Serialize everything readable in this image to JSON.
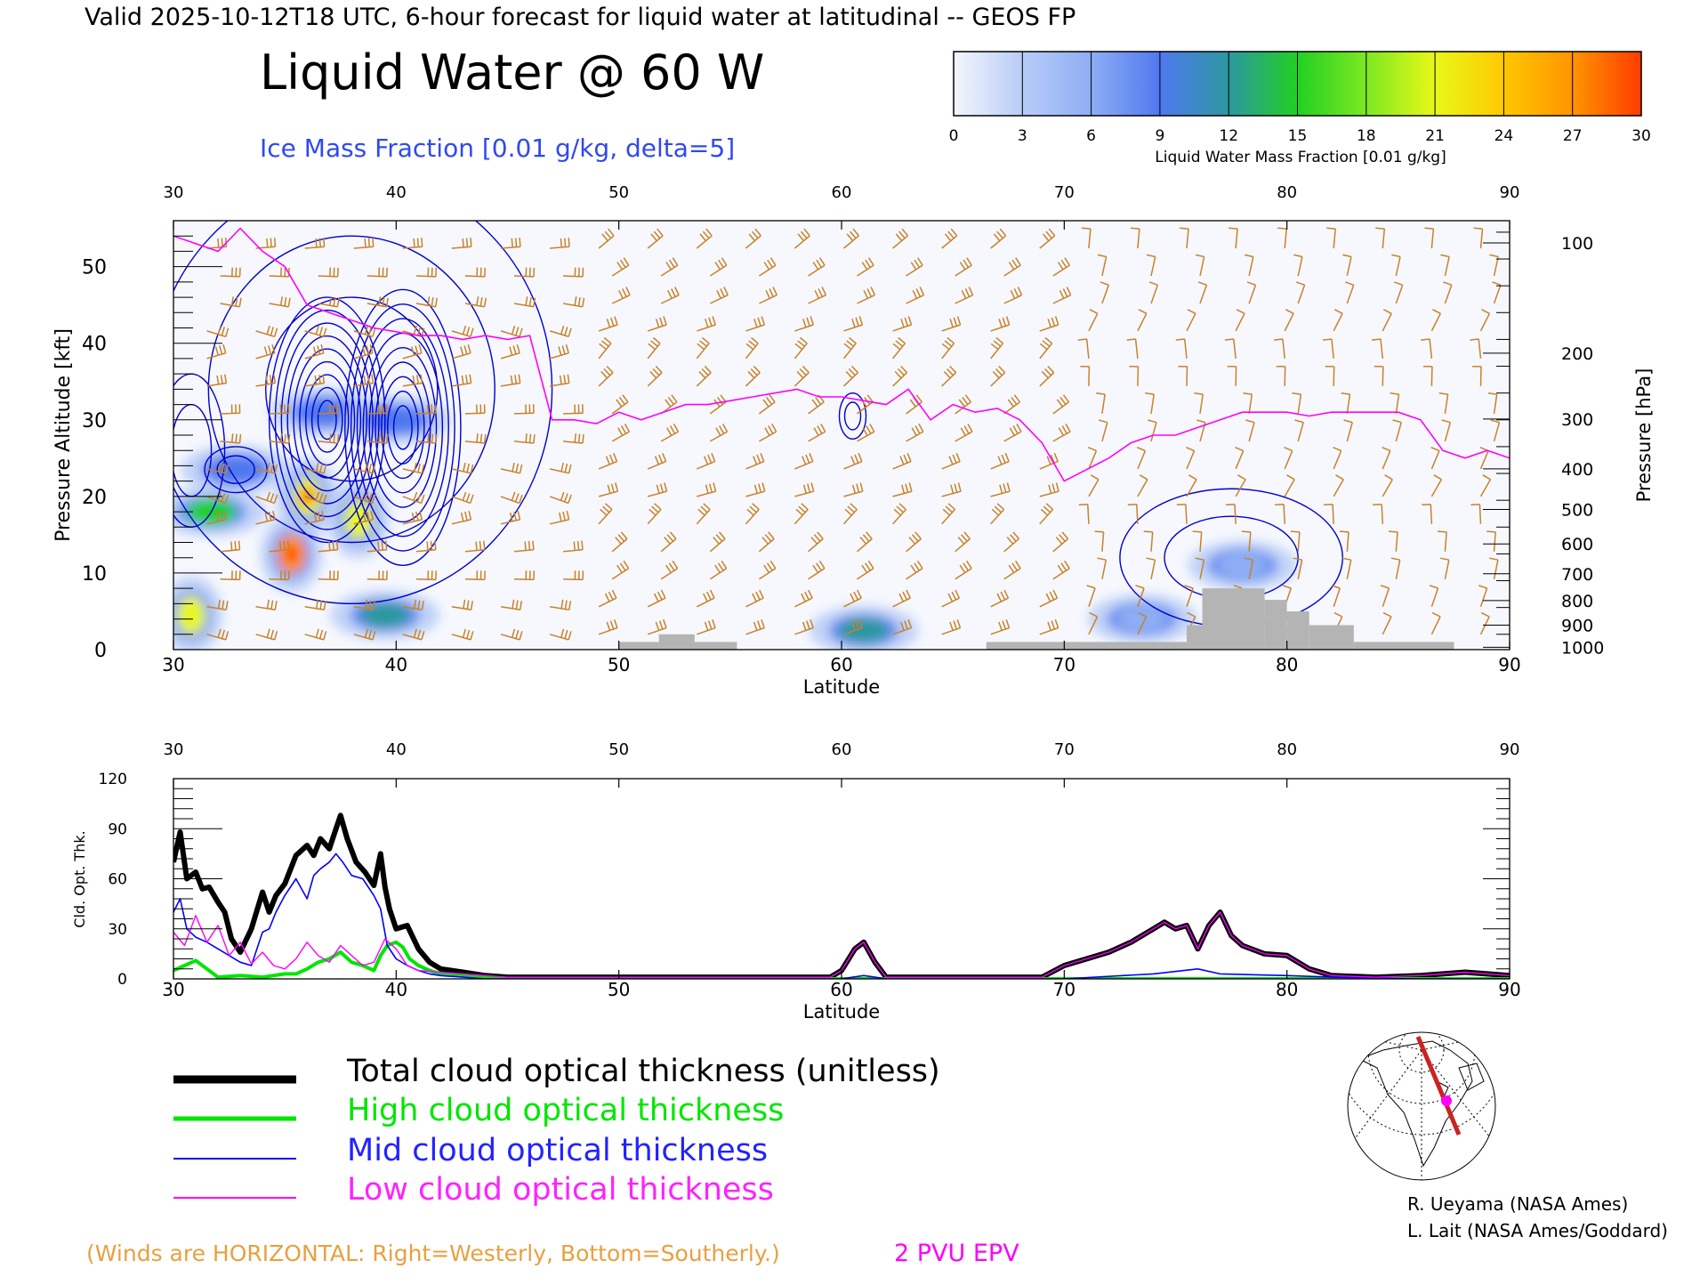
{
  "header": {
    "valid_line": "Valid 2025-10-12T18 UTC, 6-hour forecast for liquid water at latitudinal -- GEOS FP",
    "title": "Liquid Water @ 60 W",
    "subtitle": "Ice Mass Fraction [0.01 g/kg, delta=5]"
  },
  "colorbar": {
    "ticks": [
      "0",
      "3",
      "6",
      "9",
      "12",
      "15",
      "18",
      "21",
      "24",
      "27",
      "30"
    ],
    "colors": [
      "#f4f6fd",
      "#b8ccf6",
      "#8eaef5",
      "#5078f0",
      "#2c98a0",
      "#22d022",
      "#7ee822",
      "#e8f818",
      "#ffc800",
      "#ff9400",
      "#ff3c00"
    ],
    "label": "Liquid Water Mass Fraction [0.01 g/kg]"
  },
  "chart_data": [
    {
      "type": "heatmap",
      "title": "Liquid Water @ 60 W",
      "xlabel": "Latitude",
      "ylabel": "Pressure Altitude [kft]",
      "ylabel_right": "Pressure [hPa]",
      "xlim": [
        30,
        90
      ],
      "ylim": [
        0,
        56
      ],
      "x_ticks": [
        "30",
        "40",
        "50",
        "60",
        "70",
        "80",
        "90"
      ],
      "top_ticks": [
        "30",
        "40",
        "50",
        "60",
        "70",
        "80",
        "90"
      ],
      "y_ticks": [
        "0",
        "10",
        "20",
        "30",
        "40",
        "50"
      ],
      "pressure_ticks": [
        {
          "label": "100",
          "kft": 53.1
        },
        {
          "label": "200",
          "kft": 38.7
        },
        {
          "label": "300",
          "kft": 30.1
        },
        {
          "label": "400",
          "kft": 23.6
        },
        {
          "label": "500",
          "kft": 18.3
        },
        {
          "label": "600",
          "kft": 13.8
        },
        {
          "label": "700",
          "kft": 9.9
        },
        {
          "label": "800",
          "kft": 6.4
        },
        {
          "label": "900",
          "kft": 3.2
        },
        {
          "label": "1000",
          "kft": 0.3
        }
      ],
      "liquid_water_blobs": [
        {
          "lat": 30.8,
          "kft": 4.5,
          "value": 20
        },
        {
          "lat": 31.7,
          "kft": 18,
          "value": 14
        },
        {
          "lat": 35.3,
          "kft": 12.5,
          "value": 28
        },
        {
          "lat": 36.0,
          "kft": 20,
          "value": 21
        },
        {
          "lat": 38.3,
          "kft": 17,
          "value": 20
        },
        {
          "lat": 39.5,
          "kft": 4.5,
          "value": 12
        },
        {
          "lat": 32.8,
          "kft": 23.5,
          "value": 9
        },
        {
          "lat": 36.8,
          "kft": 31,
          "value": 9
        },
        {
          "lat": 40.0,
          "kft": 30,
          "value": 9
        },
        {
          "lat": 61.0,
          "kft": 2.5,
          "value": 12
        },
        {
          "lat": 78.0,
          "kft": 11,
          "value": 7
        },
        {
          "lat": 73.5,
          "kft": 4,
          "value": 6
        }
      ],
      "ice_contour_regions": [
        {
          "lat": 30.8,
          "kft": 26,
          "extent_lat": 1.5,
          "extent_kft": 10
        },
        {
          "lat": 32.8,
          "kft": 23.5,
          "extent_lat": 1.4,
          "extent_kft": 3
        },
        {
          "lat": 36.9,
          "kft": 30,
          "extent_lat": 2.6,
          "extent_kft": 16
        },
        {
          "lat": 40.3,
          "kft": 29,
          "extent_lat": 2.6,
          "extent_kft": 18
        },
        {
          "lat": 38.0,
          "kft": 34,
          "extent_lat": 9,
          "extent_kft": 28
        },
        {
          "lat": 60.5,
          "kft": 30.5,
          "extent_lat": 0.6,
          "extent_kft": 3
        },
        {
          "lat": 77.5,
          "kft": 12,
          "extent_lat": 5,
          "extent_kft": 9
        }
      ],
      "pv_2pvu_line": {
        "lat": [
          30,
          31,
          32,
          33,
          34,
          35,
          36,
          37,
          38,
          39,
          40,
          41,
          42,
          43,
          44,
          45,
          46,
          47,
          48,
          49,
          50,
          51,
          52,
          53,
          54,
          55,
          56,
          57,
          58,
          59,
          60,
          61,
          62,
          63,
          64,
          65,
          66,
          67,
          68,
          69,
          70,
          71,
          72,
          73,
          74,
          75,
          76,
          77,
          78,
          79,
          80,
          81,
          82,
          83,
          84,
          85,
          86,
          87,
          88,
          89,
          90
        ],
        "kft": [
          54,
          53,
          52,
          55,
          52,
          50,
          45,
          44,
          43,
          42,
          41.5,
          41,
          41,
          40.5,
          41,
          40.5,
          41,
          30,
          30,
          29.5,
          31,
          30,
          31,
          32,
          32,
          32.5,
          33,
          33.5,
          34,
          33,
          33,
          32.5,
          32,
          34,
          30,
          32,
          31,
          31.5,
          30,
          27,
          22,
          23.5,
          25,
          27,
          28,
          28,
          29,
          30,
          31,
          31,
          31,
          30.5,
          31,
          31,
          31,
          31,
          30,
          26,
          25,
          26,
          25
        ]
      },
      "terrain": [
        {
          "lat0": 50.0,
          "lat1": 55.3,
          "kft": 1.0
        },
        {
          "lat0": 51.8,
          "lat1": 53.4,
          "kft": 2.0
        },
        {
          "lat0": 66.5,
          "lat1": 75.5,
          "kft": 1.0
        },
        {
          "lat0": 75.5,
          "lat1": 76.2,
          "kft": 3.2
        },
        {
          "lat0": 76.2,
          "lat1": 79.0,
          "kft": 8.0
        },
        {
          "lat0": 79.0,
          "lat1": 80.0,
          "kft": 6.5
        },
        {
          "lat0": 80.0,
          "lat1": 81.0,
          "kft": 5.0
        },
        {
          "lat0": 81.0,
          "lat1": 83.0,
          "kft": 3.2
        },
        {
          "lat0": 83.0,
          "lat1": 87.5,
          "kft": 1.0
        }
      ]
    },
    {
      "type": "line",
      "xlabel": "Latitude",
      "ylabel": "Cld. Opt. Thk.",
      "xlim": [
        30,
        90
      ],
      "ylim": [
        0,
        120
      ],
      "x_ticks": [
        "30",
        "40",
        "50",
        "60",
        "70",
        "80",
        "90"
      ],
      "top_ticks": [
        "30",
        "40",
        "50",
        "60",
        "70",
        "80",
        "90"
      ],
      "y_ticks": [
        "0",
        "30",
        "60",
        "90",
        "120"
      ],
      "series": [
        {
          "name": "Total cloud optical thickness (unitless)",
          "color": "#000000",
          "x": [
            30,
            30.3,
            30.6,
            31,
            31.3,
            31.6,
            32,
            32.3,
            32.6,
            33,
            33.5,
            34,
            34.3,
            34.6,
            35,
            35.5,
            36,
            36.3,
            36.6,
            37,
            37.3,
            37.5,
            37.8,
            38.2,
            38.6,
            39,
            39.3,
            39.5,
            39.7,
            40,
            40.5,
            41,
            41.5,
            42,
            43,
            44,
            45,
            47,
            50,
            55,
            59.5,
            60,
            60.6,
            61,
            61.5,
            62,
            65,
            69,
            70,
            71,
            72,
            73,
            74,
            74.5,
            75,
            75.5,
            76,
            76.5,
            77,
            77.5,
            78,
            79,
            80,
            81,
            82,
            84,
            86,
            88,
            90
          ],
          "y": [
            70,
            88,
            60,
            64,
            54,
            55,
            46,
            40,
            24,
            16,
            30,
            52,
            40,
            50,
            57,
            74,
            80,
            74,
            84,
            78,
            90,
            98,
            84,
            70,
            64,
            56,
            75,
            55,
            42,
            30,
            32,
            18,
            10,
            6,
            4,
            2,
            1,
            1,
            1,
            1,
            1,
            5,
            18,
            22,
            10,
            1,
            1,
            1,
            8,
            12,
            16,
            22,
            30,
            34,
            30,
            32,
            18,
            32,
            40,
            26,
            20,
            15,
            14,
            6,
            2,
            1,
            2,
            4,
            2
          ]
        },
        {
          "name": "High cloud optical thickness",
          "color": "#00e600",
          "x": [
            30,
            30.5,
            31,
            31.5,
            32,
            33,
            34,
            35,
            35.5,
            36,
            36.5,
            37,
            37.5,
            38,
            38.5,
            39,
            39.3,
            39.6,
            40,
            40.3,
            40.6,
            41,
            41.5,
            42,
            43,
            44,
            45,
            50,
            60,
            70,
            80,
            90
          ],
          "y": [
            5,
            8,
            11,
            6,
            1,
            2,
            1,
            3,
            3,
            6,
            10,
            12,
            16,
            10,
            8,
            5,
            14,
            20,
            22,
            19,
            12,
            8,
            5,
            3,
            2,
            1,
            0,
            0,
            0,
            0,
            0,
            0
          ]
        },
        {
          "name": "Mid cloud optical thickness",
          "color": "#0000ff",
          "x": [
            30,
            30.3,
            30.6,
            31,
            31.5,
            32,
            32.5,
            33,
            33.5,
            34,
            34.3,
            34.6,
            35,
            35.5,
            36,
            36.3,
            36.6,
            37,
            37.3,
            37.6,
            38,
            38.5,
            39,
            39.3,
            39.6,
            40,
            40.5,
            41,
            41.5,
            42,
            43,
            44,
            45,
            50,
            60,
            60.5,
            61,
            61.5,
            62,
            70,
            74,
            76,
            77,
            80,
            82,
            86,
            88,
            90
          ],
          "y": [
            40,
            48,
            30,
            25,
            22,
            18,
            14,
            10,
            8,
            28,
            30,
            40,
            50,
            60,
            48,
            62,
            66,
            70,
            75,
            70,
            62,
            60,
            50,
            42,
            20,
            12,
            8,
            5,
            3,
            2,
            1,
            0,
            0,
            0,
            0,
            1,
            2,
            1,
            0,
            0,
            3,
            6,
            3,
            2,
            1,
            0,
            0,
            0
          ]
        },
        {
          "name": "Low cloud optical thickness",
          "color": "#ff00ff",
          "x": [
            30,
            30.5,
            31,
            31.5,
            32,
            32.5,
            33,
            33.5,
            34,
            34.5,
            35,
            35.5,
            36,
            36.5,
            37,
            37.5,
            38,
            38.5,
            39,
            39.5,
            40,
            40.5,
            41,
            42,
            43,
            44,
            45,
            47,
            50,
            55,
            59.5,
            60,
            60.6,
            61,
            61.5,
            62,
            65,
            69,
            70,
            71,
            72,
            73,
            74,
            74.5,
            75,
            75.5,
            76,
            76.5,
            77,
            77.5,
            78,
            79,
            80,
            81,
            82,
            84,
            86,
            88,
            90
          ],
          "y": [
            28,
            20,
            38,
            22,
            32,
            14,
            22,
            9,
            16,
            8,
            6,
            12,
            22,
            14,
            10,
            20,
            14,
            8,
            10,
            24,
            18,
            8,
            5,
            4,
            3,
            2,
            1,
            1,
            1,
            1,
            1,
            5,
            18,
            22,
            10,
            1,
            1,
            1,
            8,
            12,
            16,
            22,
            30,
            34,
            30,
            32,
            18,
            32,
            40,
            26,
            20,
            15,
            14,
            6,
            2,
            1,
            2,
            4,
            2
          ]
        }
      ]
    }
  ],
  "legend": {
    "total": "Total cloud optical thickness (unitless)",
    "high": "High cloud optical thickness",
    "mid": "Mid cloud optical thickness",
    "low": "Low cloud optical thickness"
  },
  "credits": {
    "line1": "R. Ueyama (NASA Ames)",
    "line2": "L. Lait (NASA Ames/Goddard)"
  },
  "footer": {
    "winds_note": "(Winds are HORIZONTAL: Right=Westerly, Bottom=Southerly.)",
    "epv_label": "2 PVU EPV"
  },
  "colors": {
    "barb": "#c8822a",
    "epv": "#ff00ff",
    "ice_contour": "#0000cc",
    "terrain": "#b4b4b4",
    "subtitle": "#2f49f0",
    "winds_note": "#e8a040",
    "path": "#cc2222"
  }
}
